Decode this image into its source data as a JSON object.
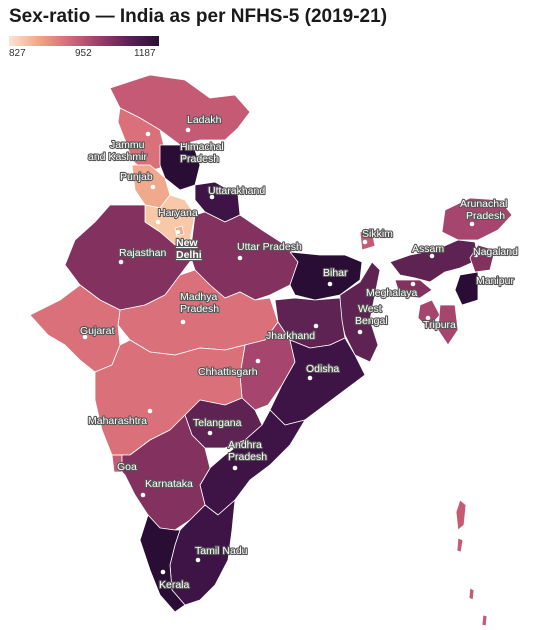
{
  "title": "Sex-ratio — India as per NFHS-5 (2019-21)",
  "legend": {
    "min": "827",
    "mid": "952",
    "max": "1187"
  },
  "colors": {
    "c827": "#f7c9a8",
    "c870": "#f1a98e",
    "c920": "#d9707a",
    "c950": "#c45a74",
    "c980": "#a6466e",
    "c1010": "#83325f",
    "c1040": "#5e2253",
    "c1080": "#3d1445",
    "c1120": "#2a0d35"
  },
  "states": [
    {
      "id": "ladakh",
      "label": "Ladakh"
    },
    {
      "id": "jk",
      "label": "Jammu and Kashmir"
    },
    {
      "id": "hp",
      "label": "Himachal Pradesh"
    },
    {
      "id": "punjab",
      "label": "Punjab"
    },
    {
      "id": "uttarakhand",
      "label": "Uttarakhand"
    },
    {
      "id": "haryana",
      "label": "Haryana"
    },
    {
      "id": "delhi",
      "label": "New Delhi"
    },
    {
      "id": "rajasthan",
      "label": "Rajasthan"
    },
    {
      "id": "up",
      "label": "Uttar Pradesh"
    },
    {
      "id": "bihar",
      "label": "Bihar"
    },
    {
      "id": "sikkim",
      "label": "Sikkim"
    },
    {
      "id": "arunachal",
      "label": "Arunachal Pradesh"
    },
    {
      "id": "assam",
      "label": "Assam"
    },
    {
      "id": "nagaland",
      "label": "Nagaland"
    },
    {
      "id": "meghalaya",
      "label": "Meghalaya"
    },
    {
      "id": "manipur",
      "label": "Manipur"
    },
    {
      "id": "tripura",
      "label": "Tripura"
    },
    {
      "id": "wb",
      "label": "West Bengal"
    },
    {
      "id": "jharkhand",
      "label": "Jharkhand"
    },
    {
      "id": "mp",
      "label": "Madhya Pradesh"
    },
    {
      "id": "gujarat",
      "label": "Gujarat"
    },
    {
      "id": "chhattisgarh",
      "label": "Chhattisgarh"
    },
    {
      "id": "odisha",
      "label": "Odisha"
    },
    {
      "id": "maharashtra",
      "label": "Maharashtra"
    },
    {
      "id": "telangana",
      "label": "Telangana"
    },
    {
      "id": "ap",
      "label": "Andhra Pradesh"
    },
    {
      "id": "goa",
      "label": "Goa"
    },
    {
      "id": "karnataka",
      "label": "Karnataka"
    },
    {
      "id": "tn",
      "label": "Tamil Nadu"
    },
    {
      "id": "kerala",
      "label": "Kerala"
    }
  ]
}
